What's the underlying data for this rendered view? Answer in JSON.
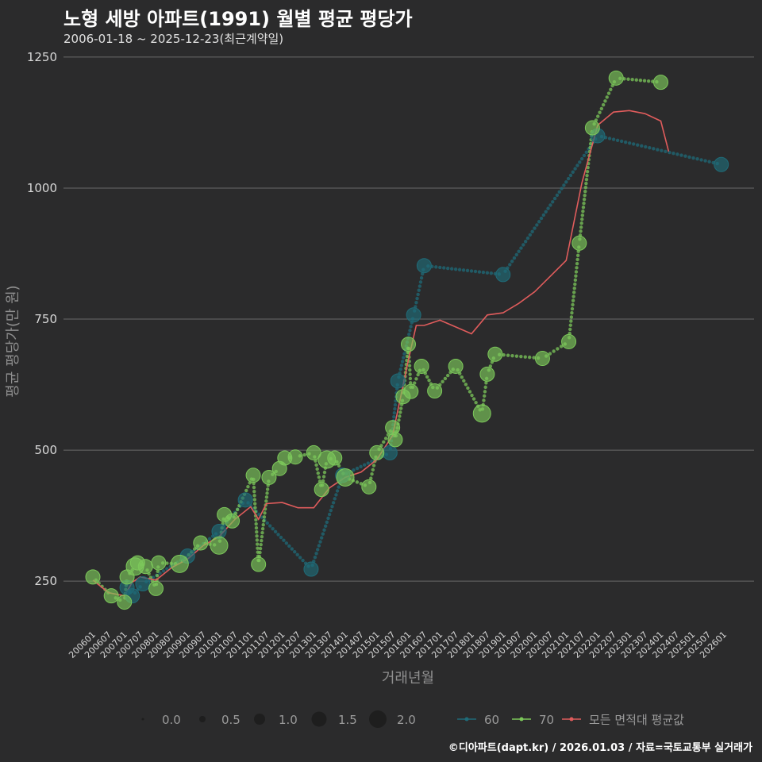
{
  "chart_data": {
    "type": "scatter",
    "title": "노형 세방 아파트(1991) 월별 평균 평당가",
    "subtitle": "2006-01-18 ~ 2025-12-23(최근계약일)",
    "xlabel": "거래년월",
    "ylabel": "평균 평당가(만 원)",
    "footer": "©디아파트(dapt.kr) / 2026.01.03 / 자료=국토교통부 실거래가",
    "ylim": [
      170,
      1265
    ],
    "yticks": [
      250,
      500,
      750,
      1000
    ],
    "x_range": [
      "2006-01",
      "2026-01"
    ],
    "xticks": [
      "200601",
      "200607",
      "200701",
      "200707",
      "200801",
      "200807",
      "200901",
      "200907",
      "201001",
      "201007",
      "201101",
      "201107",
      "201201",
      "201207",
      "201301",
      "201307",
      "201401",
      "201407",
      "201501",
      "201507",
      "201601",
      "201607",
      "201701",
      "201707",
      "201801",
      "201807",
      "201901",
      "201907",
      "202001",
      "202007",
      "202101",
      "202107",
      "202201",
      "202207",
      "202301",
      "202307",
      "202401",
      "202407",
      "202501",
      "202507",
      "202601"
    ],
    "colors": {
      "s60": "#1f6b78",
      "s70": "#7cc85a",
      "avg": "#e05c5c",
      "grid": "#6a6a6a"
    },
    "series": [
      {
        "name": "60",
        "points": [
          {
            "x": "2007-02",
            "y": 238,
            "n": 1
          },
          {
            "x": "2007-04",
            "y": 222,
            "n": 1
          },
          {
            "x": "2007-08",
            "y": 245,
            "n": 1
          },
          {
            "x": "2009-01",
            "y": 298,
            "n": 1
          },
          {
            "x": "2010-01",
            "y": 345,
            "n": 1
          },
          {
            "x": "2010-11",
            "y": 405,
            "n": 1
          },
          {
            "x": "2012-12",
            "y": 273,
            "n": 1
          },
          {
            "x": "2013-12",
            "y": 452,
            "n": 1
          },
          {
            "x": "2015-06",
            "y": 495,
            "n": 1
          },
          {
            "x": "2015-09",
            "y": 632,
            "n": 1
          },
          {
            "x": "2016-03",
            "y": 758,
            "n": 1
          },
          {
            "x": "2016-07",
            "y": 852,
            "n": 1
          },
          {
            "x": "2019-01",
            "y": 835,
            "n": 1
          },
          {
            "x": "2022-01",
            "y": 1100,
            "n": 1
          },
          {
            "x": "2025-12",
            "y": 1045,
            "n": 1
          }
        ]
      },
      {
        "name": "70",
        "points": [
          {
            "x": "2006-01",
            "y": 258,
            "n": 1
          },
          {
            "x": "2006-08",
            "y": 222,
            "n": 1
          },
          {
            "x": "2007-01",
            "y": 210,
            "n": 1
          },
          {
            "x": "2007-02",
            "y": 258,
            "n": 1
          },
          {
            "x": "2007-05",
            "y": 278,
            "n": 2
          },
          {
            "x": "2007-06",
            "y": 285,
            "n": 1
          },
          {
            "x": "2007-09",
            "y": 278,
            "n": 1
          },
          {
            "x": "2008-01",
            "y": 236,
            "n": 1
          },
          {
            "x": "2008-02",
            "y": 285,
            "n": 1
          },
          {
            "x": "2008-10",
            "y": 283,
            "n": 2
          },
          {
            "x": "2009-06",
            "y": 323,
            "n": 1
          },
          {
            "x": "2010-01",
            "y": 318,
            "n": 2
          },
          {
            "x": "2010-03",
            "y": 377,
            "n": 1
          },
          {
            "x": "2010-06",
            "y": 365,
            "n": 1
          },
          {
            "x": "2011-02",
            "y": 452,
            "n": 1
          },
          {
            "x": "2011-04",
            "y": 282,
            "n": 1
          },
          {
            "x": "2011-08",
            "y": 448,
            "n": 1
          },
          {
            "x": "2011-12",
            "y": 465,
            "n": 1
          },
          {
            "x": "2012-02",
            "y": 485,
            "n": 1
          },
          {
            "x": "2012-06",
            "y": 487,
            "n": 1
          },
          {
            "x": "2013-01",
            "y": 495,
            "n": 1
          },
          {
            "x": "2013-04",
            "y": 425,
            "n": 1
          },
          {
            "x": "2013-06",
            "y": 482,
            "n": 2
          },
          {
            "x": "2013-09",
            "y": 485,
            "n": 1
          },
          {
            "x": "2014-01",
            "y": 448,
            "n": 2
          },
          {
            "x": "2014-10",
            "y": 430,
            "n": 1
          },
          {
            "x": "2015-01",
            "y": 495,
            "n": 1
          },
          {
            "x": "2015-07",
            "y": 543,
            "n": 1
          },
          {
            "x": "2015-08",
            "y": 520,
            "n": 1
          },
          {
            "x": "2015-11",
            "y": 602,
            "n": 1
          },
          {
            "x": "2016-01",
            "y": 702,
            "n": 1
          },
          {
            "x": "2016-02",
            "y": 612,
            "n": 1
          },
          {
            "x": "2016-06",
            "y": 660,
            "n": 1
          },
          {
            "x": "2016-11",
            "y": 613,
            "n": 1
          },
          {
            "x": "2017-07",
            "y": 660,
            "n": 1
          },
          {
            "x": "2018-05",
            "y": 570,
            "n": 2
          },
          {
            "x": "2018-07",
            "y": 645,
            "n": 1
          },
          {
            "x": "2018-10",
            "y": 683,
            "n": 1
          },
          {
            "x": "2020-04",
            "y": 675,
            "n": 1
          },
          {
            "x": "2021-02",
            "y": 707,
            "n": 1
          },
          {
            "x": "2021-06",
            "y": 895,
            "n": 1
          },
          {
            "x": "2021-11",
            "y": 1115,
            "n": 1
          },
          {
            "x": "2022-08",
            "y": 1210,
            "n": 1
          },
          {
            "x": "2024-01",
            "y": 1202,
            "n": 1
          }
        ]
      },
      {
        "name": "모든 면적대 평균값",
        "line": [
          {
            "x": "2006-01",
            "y": 252
          },
          {
            "x": "2006-07",
            "y": 228
          },
          {
            "x": "2007-01",
            "y": 222
          },
          {
            "x": "2007-04",
            "y": 248
          },
          {
            "x": "2007-07",
            "y": 258
          },
          {
            "x": "2008-01",
            "y": 252
          },
          {
            "x": "2008-07",
            "y": 276
          },
          {
            "x": "2009-01",
            "y": 292
          },
          {
            "x": "2009-07",
            "y": 318
          },
          {
            "x": "2010-01",
            "y": 335
          },
          {
            "x": "2010-07",
            "y": 368
          },
          {
            "x": "2011-01",
            "y": 392
          },
          {
            "x": "2011-04",
            "y": 368
          },
          {
            "x": "2011-07",
            "y": 398
          },
          {
            "x": "2012-01",
            "y": 400
          },
          {
            "x": "2012-07",
            "y": 390
          },
          {
            "x": "2013-01",
            "y": 390
          },
          {
            "x": "2013-07",
            "y": 428
          },
          {
            "x": "2014-01",
            "y": 448
          },
          {
            "x": "2014-07",
            "y": 458
          },
          {
            "x": "2015-01",
            "y": 482
          },
          {
            "x": "2015-07",
            "y": 528
          },
          {
            "x": "2016-01",
            "y": 672
          },
          {
            "x": "2016-04",
            "y": 738
          },
          {
            "x": "2016-07",
            "y": 738
          },
          {
            "x": "2017-01",
            "y": 748
          },
          {
            "x": "2017-07",
            "y": 735
          },
          {
            "x": "2018-01",
            "y": 722
          },
          {
            "x": "2018-07",
            "y": 758
          },
          {
            "x": "2019-01",
            "y": 762
          },
          {
            "x": "2019-07",
            "y": 780
          },
          {
            "x": "2020-01",
            "y": 802
          },
          {
            "x": "2020-07",
            "y": 832
          },
          {
            "x": "2021-01",
            "y": 862
          },
          {
            "x": "2021-07",
            "y": 1010
          },
          {
            "x": "2022-01",
            "y": 1120
          },
          {
            "x": "2022-07",
            "y": 1145
          },
          {
            "x": "2023-01",
            "y": 1148
          },
          {
            "x": "2023-07",
            "y": 1142
          },
          {
            "x": "2024-01",
            "y": 1128
          },
          {
            "x": "2024-04",
            "y": 1070
          }
        ]
      }
    ],
    "legend": {
      "size": {
        "labels": [
          "0.0",
          "0.5",
          "1.0",
          "1.5",
          "2.0"
        ]
      },
      "series": {
        "labels": [
          "60",
          "70",
          "모든 면적대 평균값"
        ]
      }
    }
  }
}
